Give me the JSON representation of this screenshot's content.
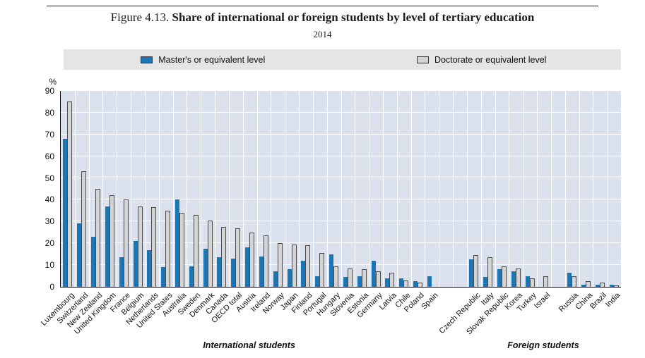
{
  "figure": {
    "label": "Figure 4.13.",
    "title": "Share of international or foreign students by level of tertiary education",
    "subtitle": "2014",
    "unit_label": "%"
  },
  "legend": {
    "items": [
      {
        "label": "Master's or equivalent level",
        "color": "#1a76b5"
      },
      {
        "label": "Doctorate or equivalent level",
        "color": "#d4d4d4"
      }
    ]
  },
  "chart_data": {
    "type": "bar",
    "title": "Share of international or foreign students by level of tertiary education",
    "subtitle": "2014",
    "xlabel": "",
    "ylabel": "%",
    "ylim": [
      0,
      90
    ],
    "ytick_step": 10,
    "grid": true,
    "legend_position": "top",
    "plot_background": "#dbe2ee",
    "categories": [
      "Luxembourg",
      "Switzerland",
      "New Zealand",
      "United Kingdom",
      "France",
      "Belgium",
      "Netherlands",
      "United States",
      "Australia",
      "Sweden",
      "Denmark",
      "Canada",
      "OECD total",
      "Austria",
      "Ireland",
      "Norway",
      "Japan",
      "Finland",
      "Portugal",
      "Hungary",
      "Slovenia",
      "Estonia",
      "Germany",
      "Latvia",
      "Chile",
      "Poland",
      "Spain",
      "Czech Republic",
      "Italy",
      "Slovak Republic",
      "Korea",
      "Turkey",
      "Israel",
      "Russia",
      "China",
      "Brazil",
      "India"
    ],
    "series": [
      {
        "name": "Master's or equivalent level",
        "color": "#1a76b5",
        "values": [
          68,
          29,
          23,
          37,
          13.5,
          21,
          17,
          9,
          40,
          9.5,
          17.5,
          13.5,
          13,
          18,
          14,
          7,
          8,
          12,
          5,
          15,
          4.5,
          5,
          12,
          4,
          4,
          2.5,
          5,
          12.5,
          4.5,
          8,
          7,
          5,
          0,
          6.5,
          1,
          1,
          1
        ]
      },
      {
        "name": "Doctorate or equivalent level",
        "color": "#d4d4d4",
        "values": [
          85,
          53,
          45,
          42,
          40,
          37,
          36.5,
          35,
          34,
          33,
          30.5,
          27.5,
          27,
          25,
          23.5,
          20,
          19.5,
          19,
          15.5,
          9.5,
          8.5,
          8,
          7,
          6.5,
          3,
          2,
          0,
          14.5,
          13.5,
          9.5,
          8.5,
          4,
          5,
          5,
          2.5,
          2,
          0.5
        ]
      }
    ],
    "group_labels": [
      {
        "label": "International students",
        "start": 0,
        "end": 26
      },
      {
        "label": "Foreign students",
        "start": 27,
        "end": 36
      }
    ],
    "gaps_before": [
      {
        "index": 27,
        "units": 2
      },
      {
        "index": 33,
        "units": 1
      }
    ]
  }
}
